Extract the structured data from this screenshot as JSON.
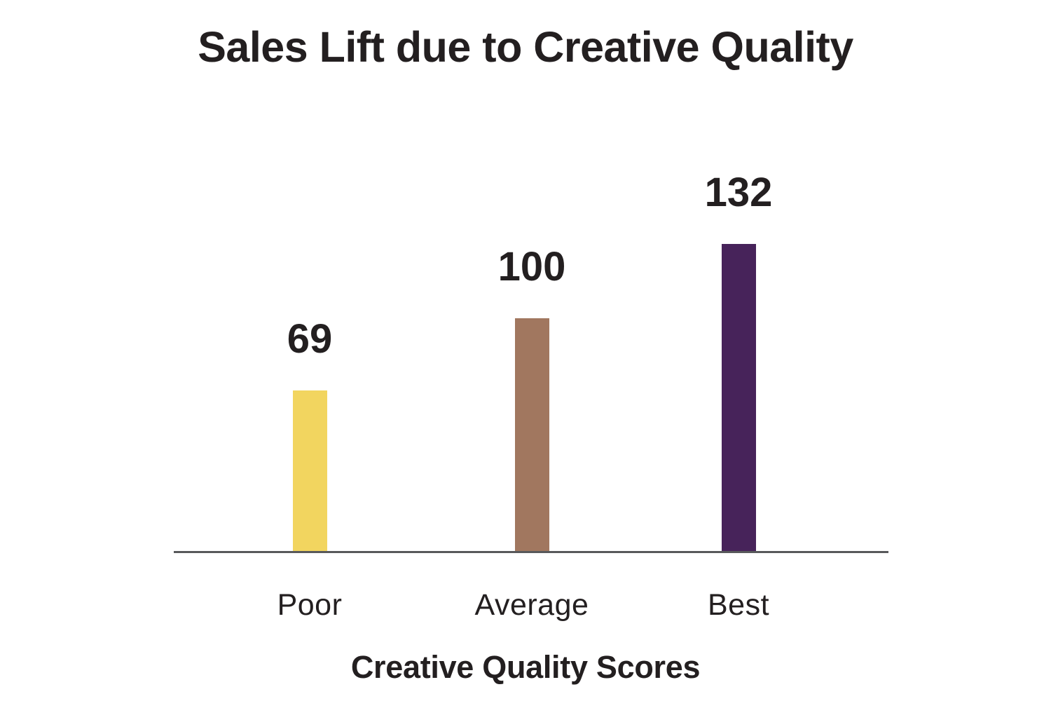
{
  "chart_data": {
    "type": "bar",
    "title": "Sales Lift due to Creative Quality",
    "xlabel": "Creative Quality Scores",
    "ylabel": "",
    "categories": [
      "Poor",
      "Average",
      "Best"
    ],
    "values": [
      69,
      100,
      132
    ],
    "bar_colors": [
      "#F2D55F",
      "#A1775F",
      "#47235A"
    ],
    "ylim": [
      0,
      140
    ],
    "grid": false,
    "legend": false,
    "value_labels_shown": true,
    "axis_line_color": "#58595B",
    "text_color": "#231F20",
    "background_color": "#FFFFFF"
  }
}
